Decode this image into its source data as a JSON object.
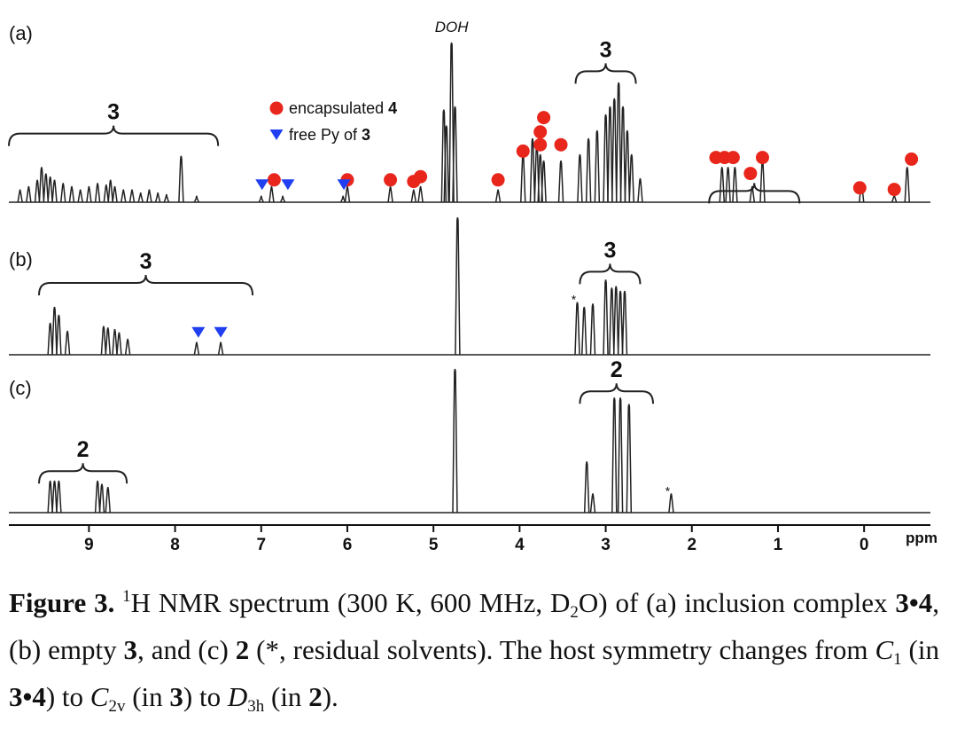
{
  "chart_data": {
    "type": "spectrum",
    "xlim": [
      9.93,
      -0.77
    ],
    "xticks": [
      9,
      8,
      7,
      6,
      5,
      4,
      3,
      2,
      1,
      0
    ],
    "xlabel": "ppm",
    "spectra": [
      {
        "label": "(a)",
        "ylim": [
          0,
          100
        ],
        "peaks": {
          "x": [
            9.8,
            9.7,
            9.6,
            9.55,
            9.5,
            9.45,
            9.4,
            9.3,
            9.2,
            9.1,
            9.0,
            8.9,
            8.8,
            8.75,
            8.7,
            8.6,
            8.5,
            8.4,
            8.3,
            8.2,
            8.1,
            7.93,
            7.75,
            7.0,
            6.88,
            6.75,
            6.05,
            6.0,
            5.5,
            5.23,
            5.15,
            4.88,
            4.85,
            4.79,
            4.75,
            4.25,
            3.96,
            3.85,
            3.8,
            3.76,
            3.72,
            3.52,
            3.3,
            3.2,
            3.1,
            3.0,
            2.95,
            2.9,
            2.85,
            2.8,
            2.75,
            2.7,
            2.6,
            1.65,
            1.58,
            1.5,
            1.3,
            1.18,
            0.03,
            -0.35,
            -0.5
          ],
          "values": [
            8,
            10,
            14,
            22,
            18,
            16,
            14,
            12,
            10,
            8,
            10,
            12,
            11,
            14,
            10,
            8,
            8,
            6,
            8,
            6,
            5,
            29,
            4,
            4,
            10,
            4,
            4,
            10,
            10,
            8,
            10,
            58,
            48,
            100,
            60,
            8,
            30,
            40,
            36,
            30,
            26,
            26,
            30,
            40,
            45,
            55,
            60,
            65,
            75,
            60,
            45,
            30,
            15,
            22,
            22,
            22,
            10,
            26,
            12,
            5,
            22
          ]
        },
        "peak_labels": [
          {
            "text": "DOH",
            "x": 4.79
          }
        ],
        "markers": [
          {
            "name": "encapsulated",
            "name_bold": "4",
            "color": "#e8261c",
            "shape": "circle",
            "x": [
              6.85,
              6.0,
              5.5,
              5.23,
              5.15,
              4.25,
              3.96,
              3.72,
              3.76,
              3.76,
              3.52,
              1.72,
              1.62,
              1.52,
              1.32,
              1.18,
              0.05,
              -0.35,
              -0.55
            ],
            "values": [
              14,
              14,
              14,
              13,
              16,
              14,
              32,
              53,
              44,
              36,
              36,
              28,
              28,
              28,
              18,
              28,
              9,
              8,
              27
            ]
          },
          {
            "name": "free Py of",
            "name_bold": "3",
            "color": "#1f3ff0",
            "shape": "triangle",
            "x": [
              6.99,
              6.69,
              6.04
            ],
            "values": [
              11,
              11,
              11
            ]
          }
        ],
        "brackets": [
          {
            "label": "3",
            "x": [
              9.93,
              7.5
            ],
            "level": 43
          },
          {
            "label": "3",
            "x": [
              3.35,
              2.65
            ],
            "level": 82
          },
          {
            "x": [
              1.8,
              0.75
            ],
            "level": 7
          }
        ]
      },
      {
        "label": "(b)",
        "ylim": [
          0,
          100
        ],
        "peaks": {
          "x": [
            9.45,
            9.4,
            9.35,
            9.25,
            8.83,
            8.78,
            8.7,
            8.65,
            8.55,
            7.75,
            7.47,
            4.72,
            3.33,
            3.25,
            3.15,
            3.0,
            2.93,
            2.88,
            2.83,
            2.78
          ],
          "values": [
            20,
            30,
            25,
            15,
            18,
            17,
            16,
            14,
            10,
            8,
            8,
            86,
            33,
            30,
            32,
            47,
            42,
            43,
            40,
            40
          ]
        },
        "annotations": [
          {
            "text": "*",
            "x": 3.33
          }
        ],
        "markers": [
          {
            "color": "#1f3ff0",
            "shape": "triangle",
            "x": [
              7.73,
              7.47
            ],
            "values": [
              14,
              14
            ]
          }
        ],
        "brackets": [
          {
            "label": "3",
            "x": [
              9.58,
              7.1
            ],
            "level": 45
          },
          {
            "label": "3",
            "x": [
              3.3,
              2.6
            ],
            "level": 52
          }
        ]
      },
      {
        "label": "(c)",
        "ylim": [
          0,
          100
        ],
        "peaks": {
          "x": [
            9.45,
            9.4,
            9.35,
            8.9,
            8.85,
            8.78,
            4.75,
            3.22,
            3.15,
            2.9,
            2.83,
            2.73,
            2.24
          ],
          "values": [
            20,
            20,
            20,
            20,
            18,
            16,
            90,
            32,
            12,
            72,
            72,
            68,
            12
          ]
        },
        "annotations": [
          {
            "text": "*",
            "x": 2.24
          }
        ],
        "brackets": [
          {
            "label": "2",
            "x": [
              9.58,
              8.56
            ],
            "level": 26
          },
          {
            "label": "2",
            "x": [
              3.3,
              2.45
            ],
            "level": 76
          }
        ]
      }
    ]
  },
  "caption": [
    {
      "text": "Figure 3. ",
      "style": "b"
    },
    {
      "text": "1",
      "style": "sup"
    },
    {
      "text": "H NMR spectrum (300 K, 600 MHz, D"
    },
    {
      "text": "2",
      "style": "sub"
    },
    {
      "text": "O) of (a) inclusion complex "
    },
    {
      "text": "3•4",
      "style": "b"
    },
    {
      "text": ", (b) empty "
    },
    {
      "text": "3",
      "style": "b"
    },
    {
      "text": ", and (c) "
    },
    {
      "text": "2",
      "style": "b"
    },
    {
      "text": " (*, residual solvents). The host symmetry changes from "
    },
    {
      "text": "C",
      "style": "i"
    },
    {
      "text": "1",
      "style": "sub"
    },
    {
      "text": " (in "
    },
    {
      "text": "3•4",
      "style": "b"
    },
    {
      "text": ") to "
    },
    {
      "text": "C",
      "style": "i"
    },
    {
      "text": "2v",
      "style": "sub"
    },
    {
      "text": " (in "
    },
    {
      "text": "3",
      "style": "b"
    },
    {
      "text": ") to "
    },
    {
      "text": "D",
      "style": "i"
    },
    {
      "text": "3h",
      "style": "sub"
    },
    {
      "text": " (in "
    },
    {
      "text": "2",
      "style": "b"
    },
    {
      "text": ")."
    }
  ]
}
